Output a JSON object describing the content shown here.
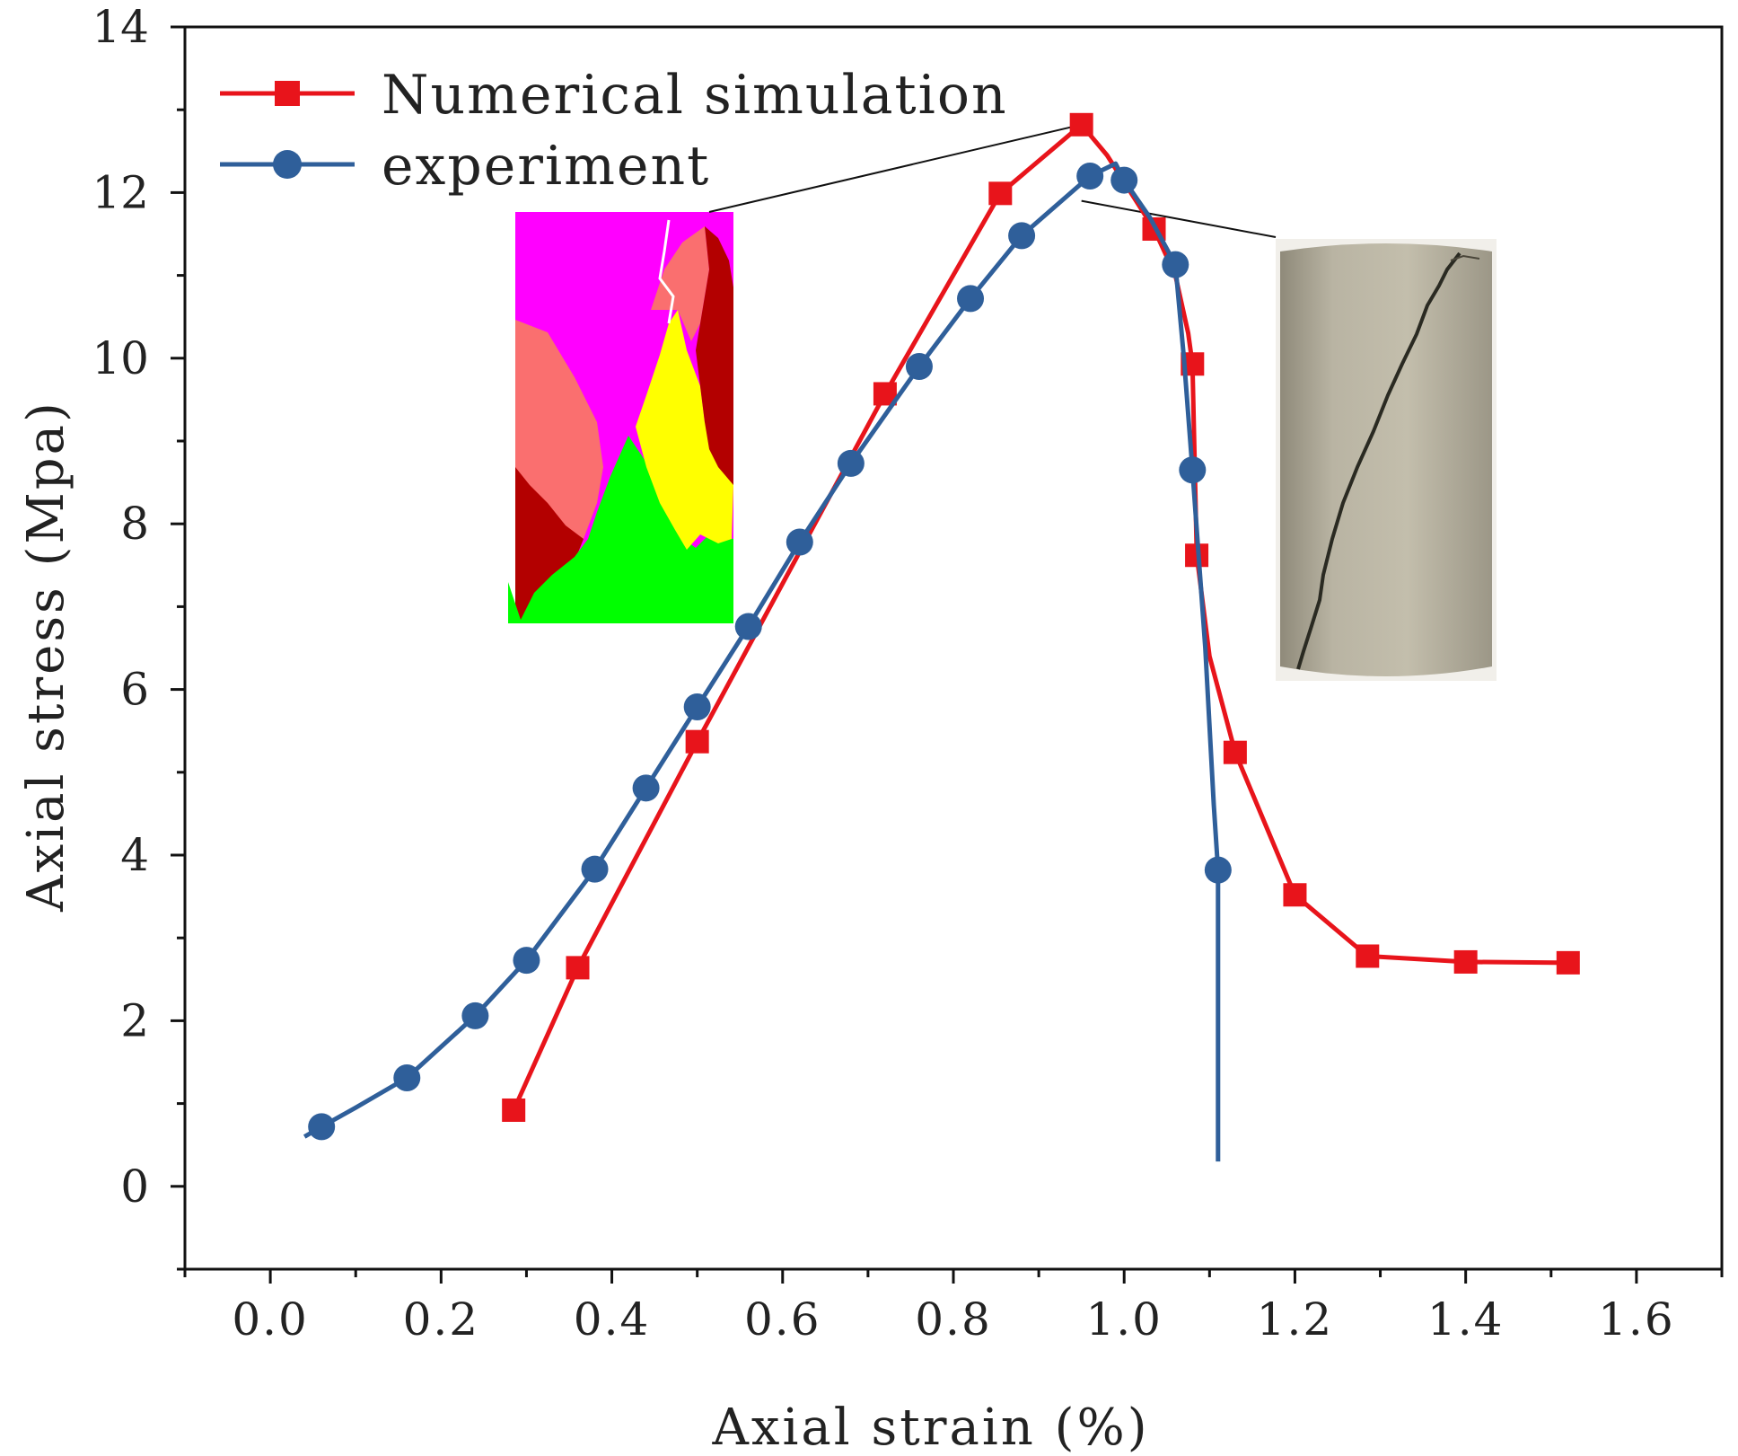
{
  "chart_data": {
    "type": "line",
    "title": "",
    "xlabel": "Axial strain (%)",
    "ylabel": "Axial stress (Mpa)",
    "xlim": [
      -0.1,
      1.7
    ],
    "ylim": [
      -1,
      14
    ],
    "x_ticks": [
      0.0,
      0.2,
      0.4,
      0.6,
      0.8,
      1.0,
      1.2,
      1.4,
      1.6
    ],
    "x_tick_labels": [
      "0.0",
      "0.2",
      "0.4",
      "0.6",
      "0.8",
      "1.0",
      "1.2",
      "1.4",
      "1.6"
    ],
    "y_ticks": [
      0,
      2,
      4,
      6,
      8,
      10,
      12,
      14
    ],
    "y_tick_labels": [
      "0",
      "2",
      "4",
      "6",
      "8",
      "10",
      "12",
      "14"
    ],
    "legend_position": "top-left",
    "grid": false,
    "series": [
      {
        "name": "Numerical simulation",
        "color": "#e8141b",
        "marker": "square",
        "points": [
          [
            0.285,
            0.92
          ],
          [
            0.36,
            2.64
          ],
          [
            0.5,
            5.37
          ],
          [
            0.72,
            9.57
          ],
          [
            0.855,
            11.99
          ],
          [
            0.95,
            12.82
          ],
          [
            1.035,
            11.56
          ],
          [
            1.08,
            9.93
          ],
          [
            1.085,
            7.62
          ],
          [
            1.13,
            5.24
          ],
          [
            1.2,
            3.52
          ],
          [
            1.285,
            2.78
          ],
          [
            1.4,
            2.71
          ],
          [
            1.52,
            2.7
          ]
        ],
        "curve": [
          [
            0.285,
            0.92
          ],
          [
            0.36,
            2.64
          ],
          [
            0.5,
            5.37
          ],
          [
            0.72,
            9.57
          ],
          [
            0.855,
            11.99
          ],
          [
            0.95,
            12.82
          ],
          [
            0.98,
            12.45
          ],
          [
            1.035,
            11.56
          ],
          [
            1.06,
            11.0
          ],
          [
            1.075,
            10.3
          ],
          [
            1.08,
            9.93
          ],
          [
            1.085,
            7.62
          ],
          [
            1.1,
            6.4
          ],
          [
            1.13,
            5.24
          ],
          [
            1.2,
            3.52
          ],
          [
            1.285,
            2.78
          ],
          [
            1.4,
            2.71
          ],
          [
            1.52,
            2.7
          ]
        ]
      },
      {
        "name": "experiment",
        "color": "#2f5f9a",
        "marker": "circle",
        "points": [
          [
            0.06,
            0.72
          ],
          [
            0.16,
            1.31
          ],
          [
            0.24,
            2.06
          ],
          [
            0.3,
            2.73
          ],
          [
            0.38,
            3.83
          ],
          [
            0.44,
            4.81
          ],
          [
            0.5,
            5.79
          ],
          [
            0.56,
            6.76
          ],
          [
            0.62,
            7.78
          ],
          [
            0.68,
            8.73
          ],
          [
            0.76,
            9.9
          ],
          [
            0.82,
            10.72
          ],
          [
            0.88,
            11.48
          ],
          [
            0.96,
            12.2
          ],
          [
            1.0,
            12.15
          ],
          [
            1.06,
            11.13
          ],
          [
            1.08,
            8.65
          ],
          [
            1.11,
            3.82
          ]
        ],
        "curve": [
          [
            0.04,
            0.6
          ],
          [
            0.06,
            0.72
          ],
          [
            0.1,
            0.95
          ],
          [
            0.16,
            1.31
          ],
          [
            0.24,
            2.06
          ],
          [
            0.3,
            2.73
          ],
          [
            0.38,
            3.83
          ],
          [
            0.44,
            4.81
          ],
          [
            0.5,
            5.79
          ],
          [
            0.56,
            6.76
          ],
          [
            0.62,
            7.78
          ],
          [
            0.68,
            8.73
          ],
          [
            0.76,
            9.9
          ],
          [
            0.82,
            10.72
          ],
          [
            0.88,
            11.48
          ],
          [
            0.96,
            12.2
          ],
          [
            0.99,
            12.35
          ],
          [
            1.0,
            12.15
          ],
          [
            1.03,
            11.7
          ],
          [
            1.06,
            11.13
          ],
          [
            1.07,
            10.0
          ],
          [
            1.08,
            8.65
          ],
          [
            1.095,
            6.5
          ],
          [
            1.105,
            4.6
          ],
          [
            1.11,
            3.82
          ],
          [
            1.11,
            0.3
          ]
        ]
      }
    ],
    "annotations": [
      {
        "type": "inset-image",
        "description": "numerical failure pattern",
        "leader_from": [
          0.95,
          12.82
        ]
      },
      {
        "type": "inset-image",
        "description": "experimental fractured specimen",
        "leader_from": [
          0.95,
          11.9
        ]
      }
    ]
  }
}
